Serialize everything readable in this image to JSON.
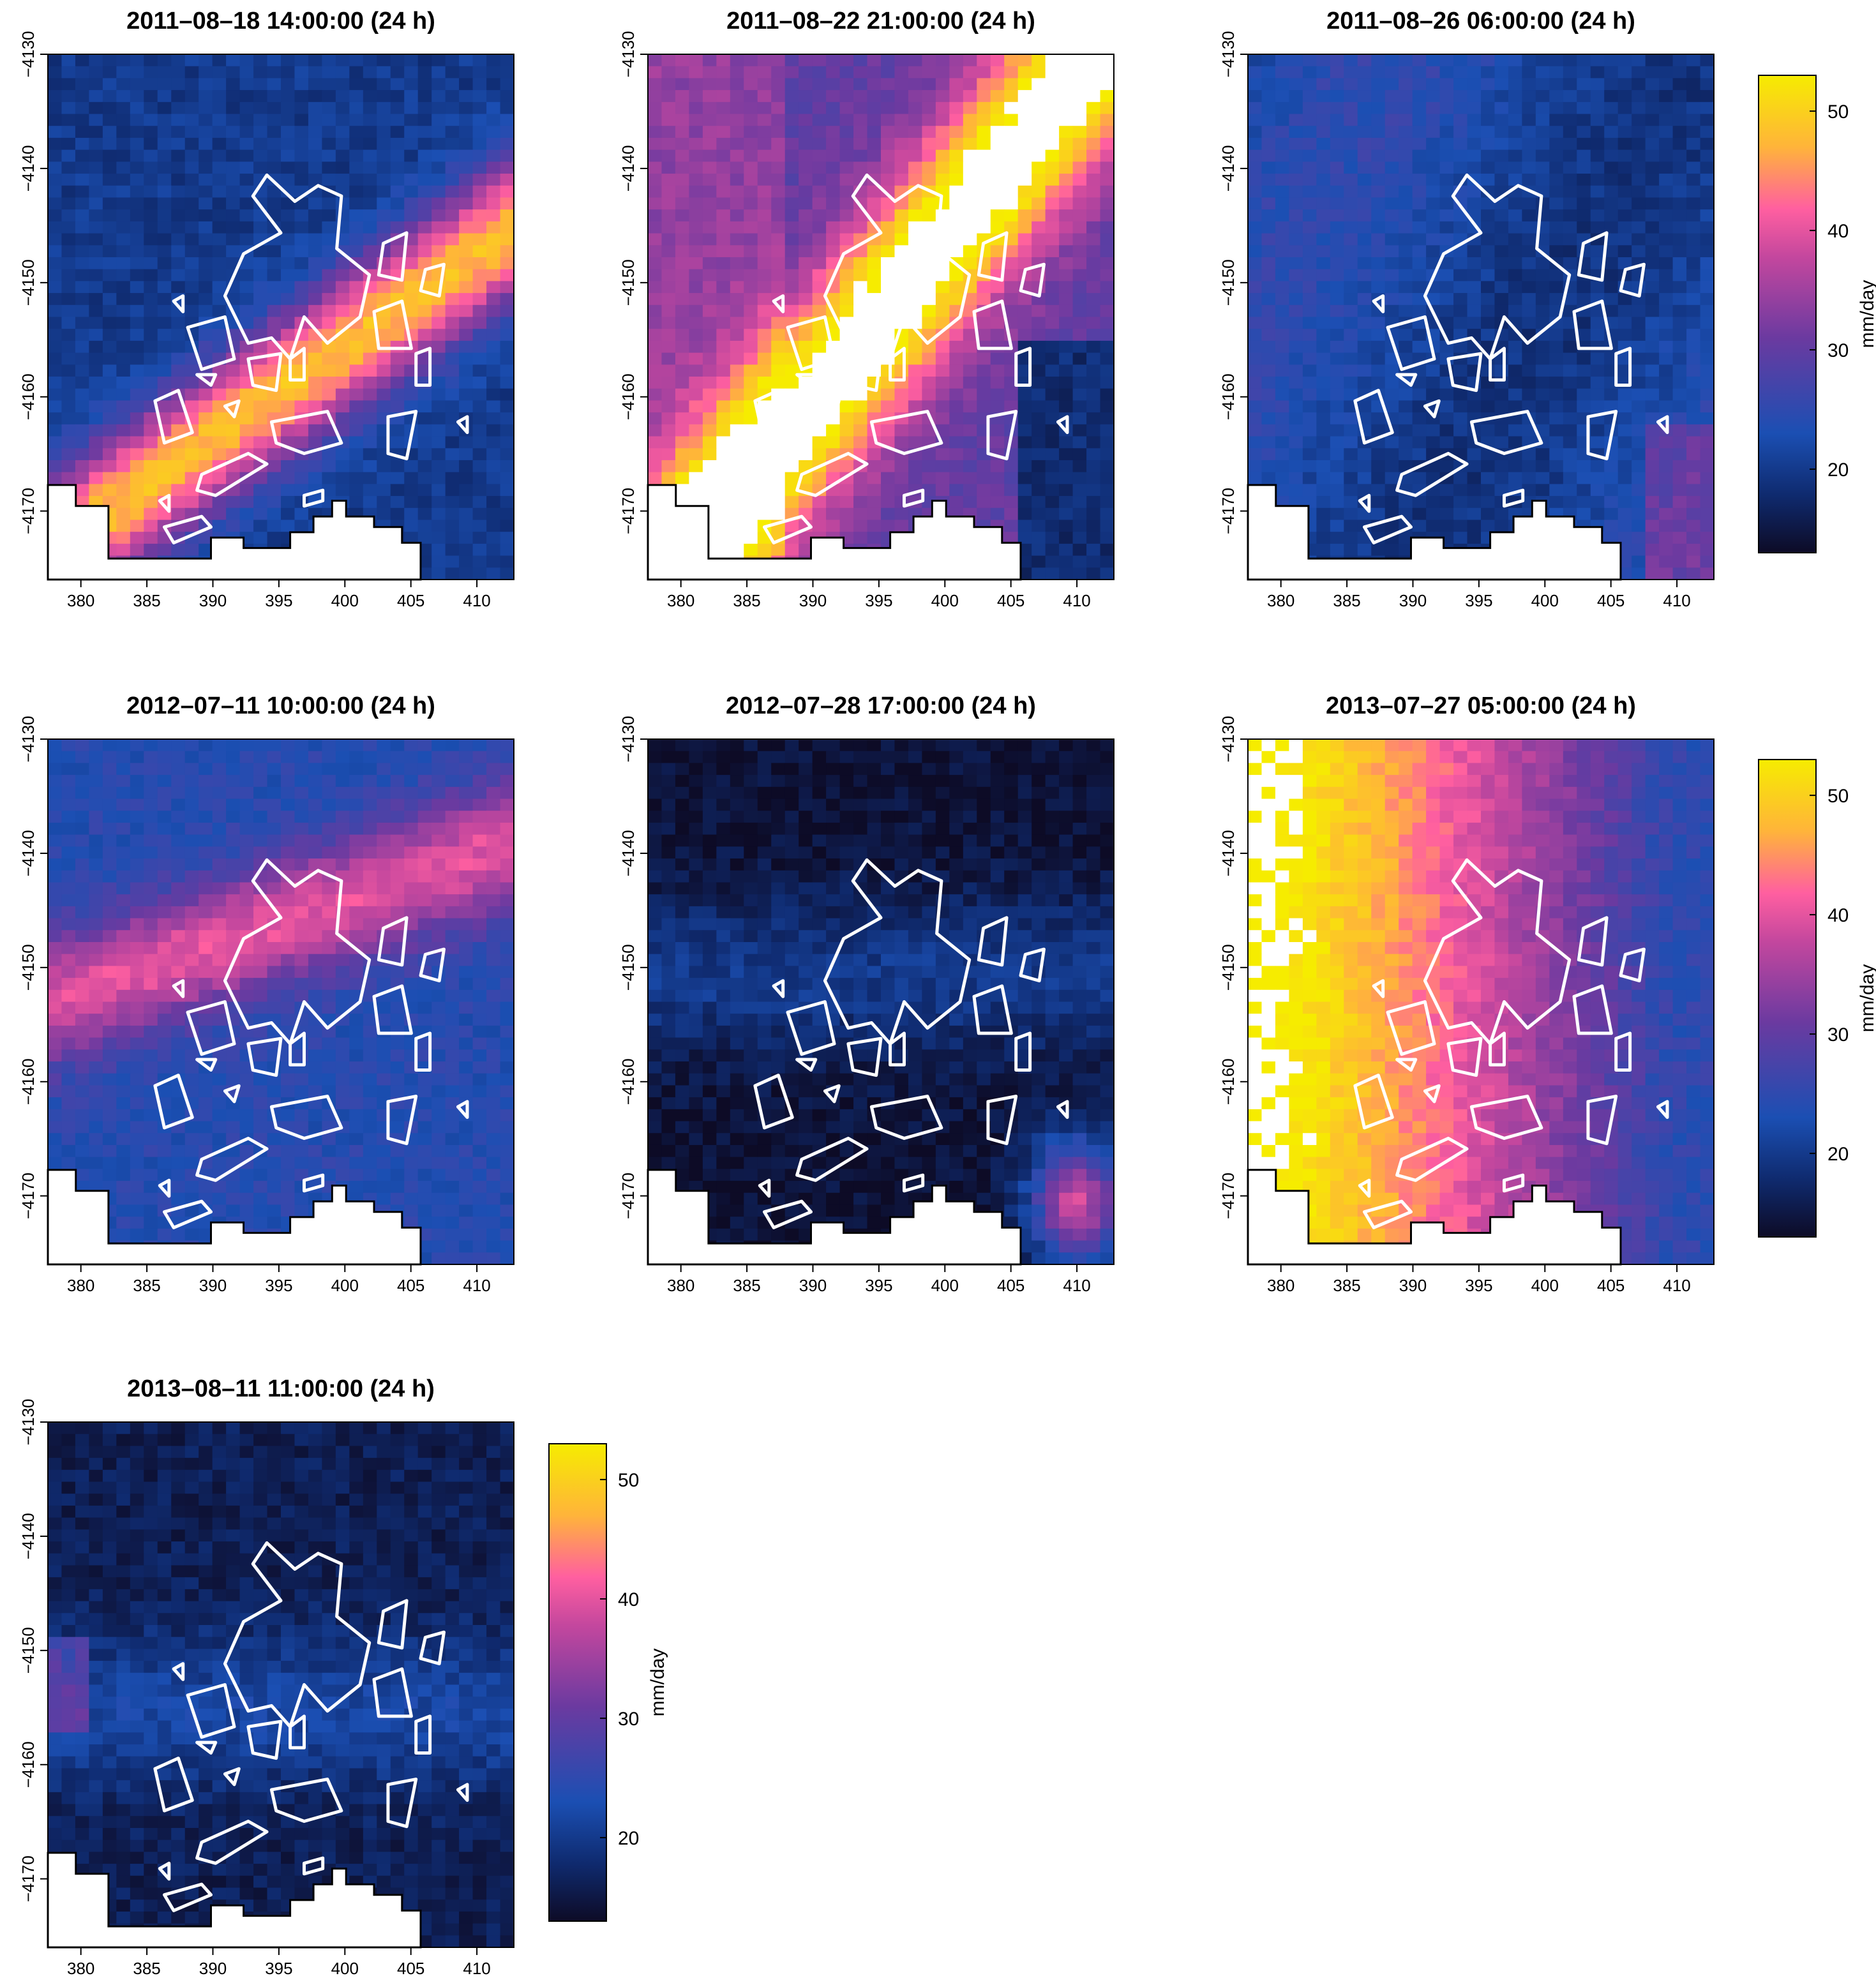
{
  "figure": {
    "panels": [
      {
        "title": "2011–08–18 14:00:00 (24 h)",
        "pattern": "diag_band",
        "base": 20,
        "peak": 48
      },
      {
        "title": "2011–08–22 21:00:00 (24 h)",
        "pattern": "ne_band",
        "base": 30,
        "peak": 58
      },
      {
        "title": "2011–08–26 06:00:00 (24 h)",
        "pattern": "flat",
        "base": 22,
        "peak": 28
      },
      {
        "title": "2012–07–11 10:00:00 (24 h)",
        "pattern": "w_band",
        "base": 24,
        "peak": 40
      },
      {
        "title": "2012–07–28 17:00:00 (24 h)",
        "pattern": "dark_se",
        "base": 14,
        "peak": 38
      },
      {
        "title": "2013–07–27 05:00:00 (24 h)",
        "pattern": "west_high",
        "base": 25,
        "peak": 55
      },
      {
        "title": "2013–08–11 11:00:00 (24 h)",
        "pattern": "dark_band",
        "base": 16,
        "peak": 30
      }
    ],
    "x_ticks": [
      "380",
      "385",
      "390",
      "395",
      "400",
      "405",
      "410"
    ],
    "y_ticks": [
      "−4130",
      "−4140",
      "−4150",
      "−4160",
      "−4170"
    ],
    "colorbar": {
      "label": "mm/day",
      "ticks": [
        "20",
        "30",
        "40",
        "50"
      ],
      "range": [
        13,
        53
      ],
      "colors": [
        "#0d0b26",
        "#0f2a6e",
        "#1b4fb3",
        "#6b3aa0",
        "#c4479e",
        "#ff5fa0",
        "#ffb43a",
        "#f6ec00"
      ]
    },
    "domain": {
      "x_range": [
        377.5,
        412.8
      ],
      "y_range": [
        -4176,
        -4130
      ]
    }
  }
}
